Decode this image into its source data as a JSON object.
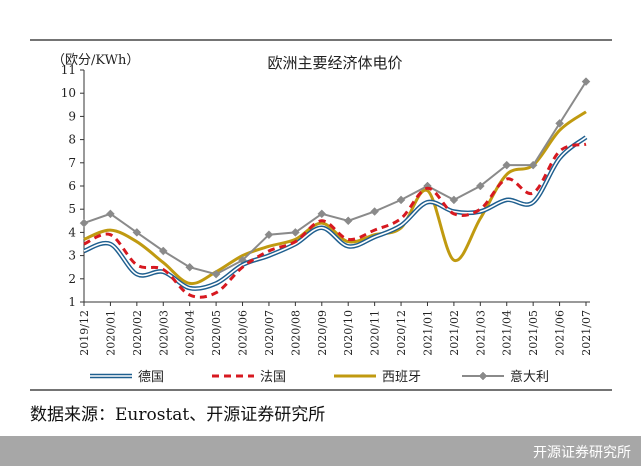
{
  "chart_data": {
    "type": "line",
    "title": "欧洲主要经济体电价",
    "ylabel": "（欧分/KWh）",
    "xlabel": "",
    "ylim": [
      1,
      11
    ],
    "yticks": [
      1,
      2,
      3,
      4,
      5,
      6,
      7,
      8,
      9,
      10,
      11
    ],
    "categories": [
      "2019/12",
      "2020/01",
      "2020/02",
      "2020/03",
      "2020/04",
      "2020/05",
      "2020/06",
      "2020/07",
      "2020/08",
      "2020/09",
      "2020/10",
      "2020/11",
      "2020/12",
      "2021/01",
      "2021/02",
      "2021/03",
      "2021/04",
      "2021/05",
      "2021/06",
      "2021/07"
    ],
    "series": [
      {
        "name": "德国",
        "color": "#1f5f8f",
        "style": "double",
        "values": [
          3.2,
          3.5,
          2.2,
          2.3,
          1.6,
          1.8,
          2.6,
          3.0,
          3.5,
          4.2,
          3.4,
          3.8,
          4.3,
          5.3,
          4.9,
          4.9,
          5.4,
          5.3,
          7.2,
          8.1
        ]
      },
      {
        "name": "法国",
        "color": "#d71920",
        "style": "dashed",
        "values": [
          3.5,
          3.9,
          2.6,
          2.4,
          1.3,
          1.4,
          2.5,
          3.2,
          3.6,
          4.5,
          3.7,
          4.1,
          4.6,
          5.9,
          4.8,
          5.0,
          6.3,
          5.7,
          7.5,
          7.8
        ]
      },
      {
        "name": "西班牙",
        "color": "#c09a10",
        "style": "solid",
        "values": [
          3.7,
          4.1,
          3.6,
          2.7,
          1.8,
          2.3,
          3.0,
          3.4,
          3.7,
          4.4,
          3.6,
          3.9,
          4.2,
          5.8,
          2.8,
          4.6,
          6.5,
          6.9,
          8.4,
          9.2
        ]
      },
      {
        "name": "意大利",
        "color": "#8a8a8a",
        "style": "marker",
        "values": [
          4.4,
          4.8,
          4.0,
          3.2,
          2.5,
          2.2,
          2.8,
          3.9,
          4.0,
          4.8,
          4.5,
          4.9,
          5.4,
          6.0,
          5.4,
          6.0,
          6.9,
          6.9,
          8.7,
          10.5
        ]
      }
    ],
    "legend_position": "bottom",
    "source": "数据来源：Eurostat、开源证券研究所"
  },
  "footer": {
    "brand": "开源证券研究所"
  }
}
